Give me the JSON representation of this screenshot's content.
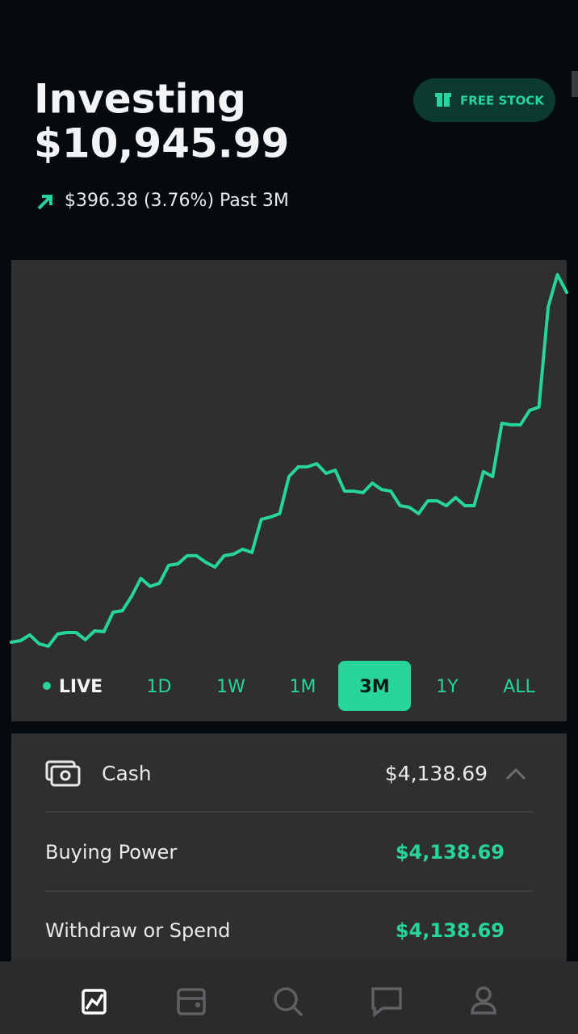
{
  "header": {
    "title": "Investing",
    "balance": "$10,945.99",
    "change": "$396.38 (3.76%) Past 3M"
  },
  "free_stock_button": "FREE STOCK",
  "chart_data": {
    "type": "line",
    "color": "#27d49b",
    "values": [
      10549.61,
      10551.4,
      10557.9,
      10547.8,
      10545.0,
      10558.8,
      10560.6,
      10560.6,
      10552.4,
      10562.4,
      10561.5,
      10583.5,
      10585.3,
      10601.8,
      10621.9,
      10612.8,
      10616.4,
      10636.6,
      10638.4,
      10647.6,
      10647.6,
      10640.2,
      10634.7,
      10647.6,
      10649.4,
      10654.9,
      10651.2,
      10688.8,
      10691.5,
      10695.2,
      10737.3,
      10748.3,
      10748.3,
      10751.9,
      10740.9,
      10744.6,
      10720.8,
      10720.8,
      10719.0,
      10729.9,
      10722.6,
      10720.8,
      10704.3,
      10702.5,
      10695.2,
      10709.8,
      10709.8,
      10704.3,
      10713.5,
      10704.3,
      10704.3,
      10742.8,
      10737.3,
      10797.7,
      10795.9,
      10795.9,
      10812.3,
      10816.0,
      10929.5,
      10966.1,
      10945.99
    ]
  },
  "range_buttons": [
    {
      "label": "LIVE",
      "selected": false
    },
    {
      "label": "1D",
      "selected": false
    },
    {
      "label": "1W",
      "selected": false
    },
    {
      "label": "1M",
      "selected": false
    },
    {
      "label": "3M",
      "selected": true
    },
    {
      "label": "1Y",
      "selected": false
    },
    {
      "label": "ALL",
      "selected": false
    }
  ],
  "cash": {
    "label": "Cash",
    "amount": "$4,138.69",
    "rows": [
      {
        "label": "Buying Power",
        "value": "$4,138.69"
      },
      {
        "label": "Withdraw or Spend",
        "value": "$4,138.69"
      }
    ]
  }
}
